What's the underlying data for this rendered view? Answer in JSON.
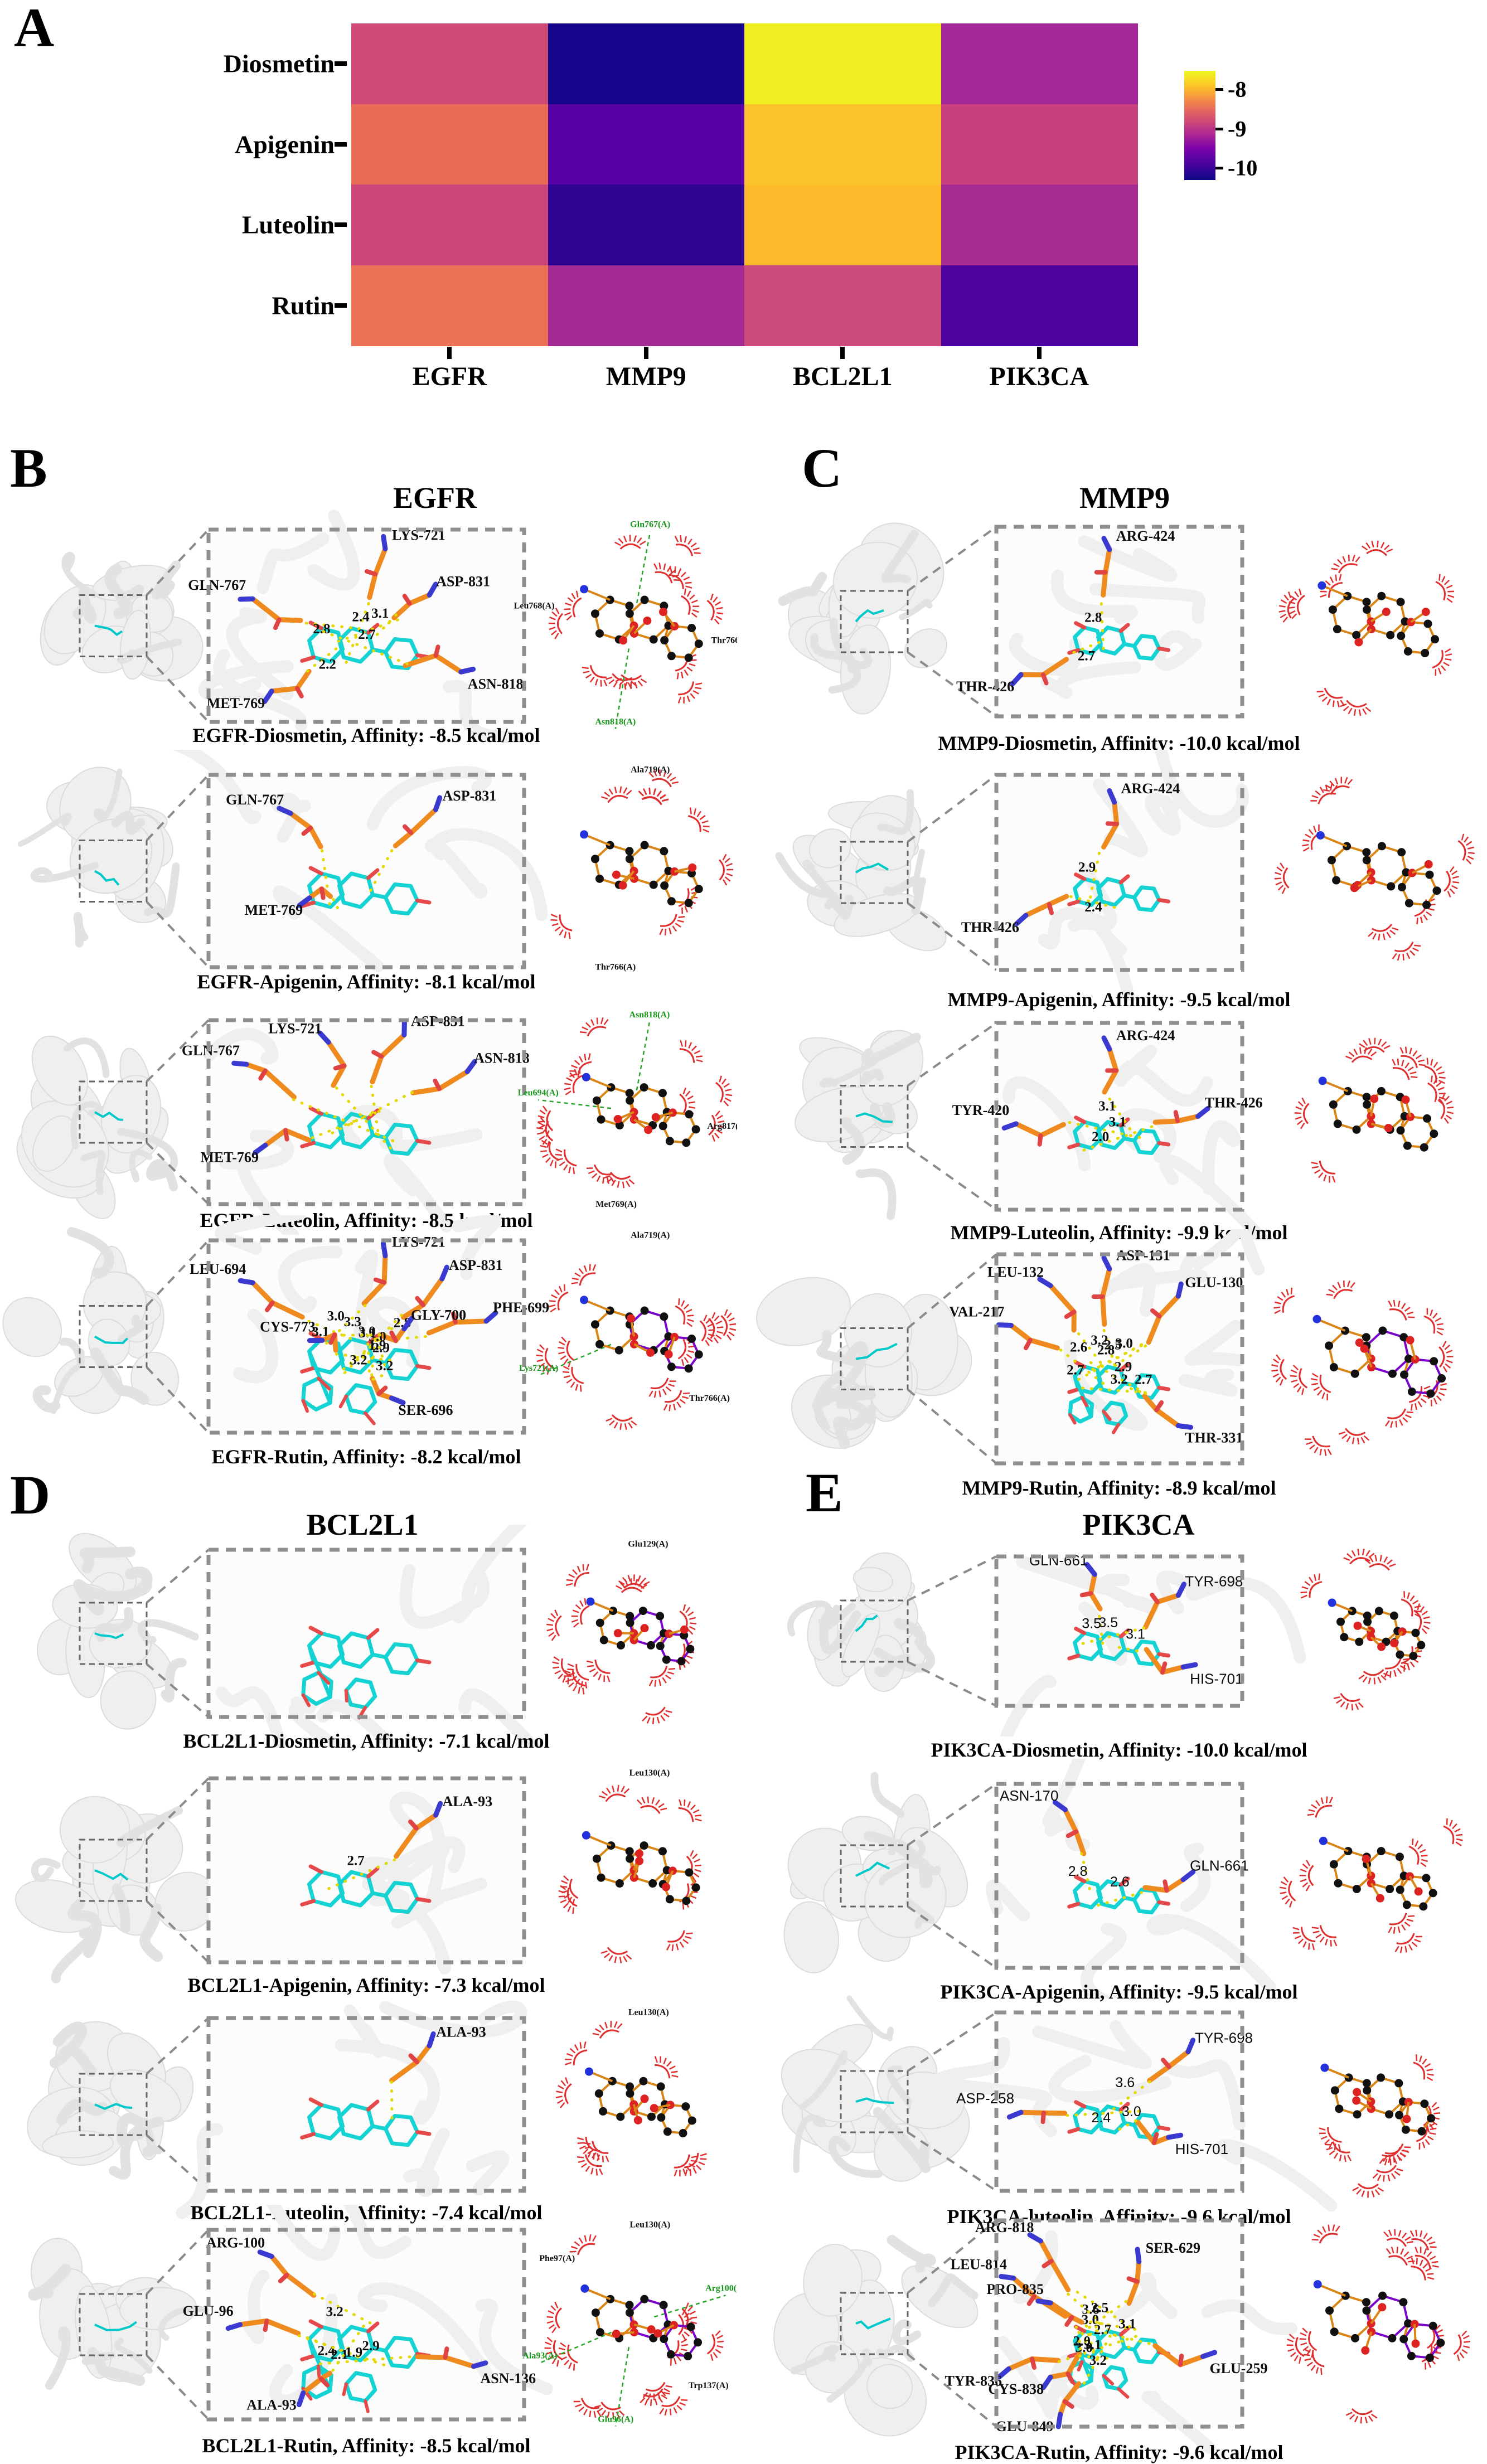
{
  "panel_a": {
    "letter": "A"
  },
  "heatmap": {
    "row_labels": [
      "Diosmetin",
      "Apigenin",
      "Luteolin",
      "Rutin"
    ],
    "col_labels": [
      "EGFR",
      "MMP9",
      "BCL2L1",
      "PIK3CA"
    ],
    "cell_colors": [
      [
        "#d04a76",
        "#16078c",
        "#f0ee23",
        "#a32897"
      ],
      [
        "#eb6c55",
        "#5901a5",
        "#fcc22c",
        "#c8407d"
      ],
      [
        "#cc4879",
        "#300591",
        "#fcba2b",
        "#a62c92"
      ],
      [
        "#eb7257",
        "#a32b93",
        "#cc4b7a",
        "#4d02a0"
      ]
    ],
    "colorbar_ticks": [
      "-8",
      "-9",
      "-10"
    ],
    "colorbar_gradient": [
      "#f0f921",
      "#fdc328",
      "#f3824d",
      "#d5546e",
      "#b12a90",
      "#7902a8",
      "#47039f",
      "#0d0887"
    ]
  },
  "chart_data": {
    "type": "heatmap",
    "title": "",
    "rows": [
      "Diosmetin",
      "Apigenin",
      "Luteolin",
      "Rutin"
    ],
    "columns": [
      "EGFR",
      "MMP9",
      "BCL2L1",
      "PIK3CA"
    ],
    "unit": "kcal/mol",
    "values": [
      [
        -8.5,
        -10.0,
        -7.1,
        -10.0
      ],
      [
        -8.1,
        -9.5,
        -7.3,
        -9.5
      ],
      [
        -8.5,
        -9.9,
        -7.4,
        -9.6
      ],
      [
        -8.2,
        -8.9,
        -8.5,
        -9.6
      ]
    ],
    "colorbar": {
      "ticks": [
        -8,
        -9,
        -10
      ],
      "colormap": "plasma",
      "orientation": "vertical"
    },
    "legend_position": "right",
    "grid": false
  },
  "panels": [
    {
      "letter": "B",
      "title": "EGFR",
      "rows": [
        {
          "caption": "EGFR-Diosmetin, Affinity: -8.5 kcal/mol",
          "affinity": "-8.5",
          "residues": [
            {
              "name": "LYS-721",
              "p": [
                0.56,
                0.1
              ],
              "d": []
            },
            {
              "name": "GLN-767",
              "p": [
                0.14,
                0.36
              ],
              "d": [
                "2.8"
              ]
            },
            {
              "name": "ASP-831",
              "p": [
                0.7,
                0.34
              ],
              "d": [
                "3.1",
                "2.4"
              ]
            },
            {
              "name": "MET-769",
              "p": [
                0.2,
                0.84
              ],
              "d": [
                "2.2"
              ]
            },
            {
              "name": "ASN-818",
              "p": [
                0.8,
                0.74
              ],
              "d": [
                "2.7"
              ]
            }
          ],
          "diagram_labels": [
            {
              "t": "Gln767(A)",
              "c": "#18961b"
            },
            {
              "t": "Thr766(A)",
              "c": "#111111"
            },
            {
              "t": "Asn818(A)",
              "c": "#18961b"
            },
            {
              "t": "Leu768(A)",
              "c": "#111111"
            }
          ],
          "purple": false,
          "sans": false
        },
        {
          "caption": "EGFR-Apigenin, Affinity: -8.1 kcal/mol",
          "affinity": "-8.1",
          "residues": [
            {
              "name": "GLN-767",
              "p": [
                0.26,
                0.2
              ],
              "d": []
            },
            {
              "name": "ASP-831",
              "p": [
                0.72,
                0.18
              ],
              "d": []
            },
            {
              "name": "MET-769",
              "p": [
                0.32,
                0.64
              ],
              "d": []
            }
          ],
          "diagram_labels": [
            {
              "t": "Ala719(A)",
              "c": "#111111"
            },
            {
              "t": "Thr766(A)",
              "c": "#111111"
            }
          ],
          "purple": false,
          "sans": false
        },
        {
          "caption": "EGFR-Luteolin, Affinity: -8.5 kcal/mol",
          "affinity": "-8.5",
          "residues": [
            {
              "name": "GLN-767",
              "p": [
                0.12,
                0.24
              ],
              "d": []
            },
            {
              "name": "LYS-721",
              "p": [
                0.38,
                0.12
              ],
              "d": []
            },
            {
              "name": "ASP-831",
              "p": [
                0.62,
                0.08
              ],
              "d": []
            },
            {
              "name": "ASN-818",
              "p": [
                0.82,
                0.28
              ],
              "d": []
            },
            {
              "name": "MET-769",
              "p": [
                0.18,
                0.68
              ],
              "d": []
            }
          ],
          "diagram_labels": [
            {
              "t": "Asn818(A)",
              "c": "#18961b"
            },
            {
              "t": "Arg817(A)",
              "c": "#111111"
            },
            {
              "t": "Met769(A)",
              "c": "#111111"
            },
            {
              "t": "Leu694(A)",
              "c": "#18961b"
            }
          ],
          "purple": false,
          "sans": false
        },
        {
          "caption": "EGFR-Rutin, Affinity: -8.2 kcal/mol",
          "affinity": "-8.2",
          "residues": [
            {
              "name": "LEU-694",
              "p": [
                0.14,
                0.22
              ],
              "d": [
                "3.1"
              ]
            },
            {
              "name": "LYS-721",
              "p": [
                0.56,
                0.08
              ],
              "d": [
                "3.0"
              ]
            },
            {
              "name": "ASP-831",
              "p": [
                0.74,
                0.2
              ],
              "d": [
                "3.0",
                "3.1"
              ]
            },
            {
              "name": "PHE-699",
              "p": [
                0.88,
                0.42
              ],
              "d": [
                "2.8"
              ]
            },
            {
              "name": "GLY-700",
              "p": [
                0.62,
                0.46
              ],
              "d": [
                "3.0",
                "3.3"
              ]
            },
            {
              "name": "CYS-773",
              "p": [
                0.36,
                0.52
              ],
              "d": [
                "3.2"
              ]
            },
            {
              "name": "SER-696",
              "p": [
                0.58,
                0.82
              ],
              "d": [
                "3.2",
                "2.9",
                "1.9"
              ]
            }
          ],
          "diagram_labels": [
            {
              "t": "Ala719(A)",
              "c": "#111111"
            },
            {
              "t": "Thr766(A)",
              "c": "#111111"
            },
            {
              "t": "Lys721(A)",
              "c": "#18961b"
            }
          ],
          "purple": true,
          "sans": false
        }
      ]
    },
    {
      "letter": "C",
      "title": "MMP9",
      "rows": [
        {
          "caption": "MMP9-Diosmetin, Affinity: -10.0 kcal/mol",
          "affinity": "-10.0",
          "residues": [
            {
              "name": "ARG-424",
              "p": [
                0.46,
                0.12
              ],
              "d": [
                "2.8"
              ]
            },
            {
              "name": "THR-426",
              "p": [
                0.1,
                0.78
              ],
              "d": [
                "2.7"
              ]
            }
          ],
          "diagram_labels": [],
          "purple": false,
          "sans": false
        },
        {
          "caption": "MMP9-Apigenin, Affinity: -9.5 kcal/mol",
          "affinity": "-9.5",
          "residues": [
            {
              "name": "ARG-424",
              "p": [
                0.48,
                0.14
              ],
              "d": [
                "2.9"
              ]
            },
            {
              "name": "THR-426",
              "p": [
                0.12,
                0.72
              ],
              "d": [
                "2.4"
              ]
            }
          ],
          "diagram_labels": [],
          "purple": false,
          "sans": false
        },
        {
          "caption": "MMP9-Luteolin, Affinity: -9.9 kcal/mol",
          "affinity": "-9.9",
          "residues": [
            {
              "name": "TYR-420",
              "p": [
                0.08,
                0.54
              ],
              "d": [
                "2.0"
              ]
            },
            {
              "name": "ARG-424",
              "p": [
                0.46,
                0.14
              ],
              "d": [
                "3.1"
              ]
            },
            {
              "name": "THR-426",
              "p": [
                0.82,
                0.5
              ],
              "d": [
                "3.1"
              ]
            }
          ],
          "diagram_labels": [],
          "purple": false,
          "sans": false
        },
        {
          "caption": "MMP9-Rutin, Affinity: -8.9 kcal/mol",
          "affinity": "-8.9",
          "residues": [
            {
              "name": "ASP-131",
              "p": [
                0.46,
                0.07
              ],
              "d": [
                "3.2"
              ]
            },
            {
              "name": "LEU-132",
              "p": [
                0.22,
                0.15
              ],
              "d": [
                "2.6"
              ]
            },
            {
              "name": "GLU-130",
              "p": [
                0.74,
                0.2
              ],
              "d": [
                "3.0",
                "2.8",
                "2.5"
              ]
            },
            {
              "name": "VAL-217",
              "p": [
                0.06,
                0.34
              ],
              "d": [
                "2.7"
              ]
            },
            {
              "name": "THR-331",
              "p": [
                0.74,
                0.82
              ],
              "d": [
                "2.7",
                "2.9",
                "3.2"
              ]
            }
          ],
          "diagram_labels": [],
          "purple": true,
          "sans": false
        }
      ]
    },
    {
      "letter": "D",
      "title": "BCL2L1",
      "rows": [
        {
          "caption": "BCL2L1-Diosmetin, Affinity: -7.1 kcal/mol",
          "affinity": "-7.1",
          "residues": [],
          "diagram_labels": [
            {
              "t": "Glu129(A)",
              "c": "#111111"
            }
          ],
          "purple": true,
          "sans": false
        },
        {
          "caption": "BCL2L1-Apigenin, Affinity: -7.3 kcal/mol",
          "affinity": "-7.3",
          "residues": [
            {
              "name": "ALA-93",
              "p": [
                0.72,
                0.2
              ],
              "d": [
                "2.7"
              ]
            }
          ],
          "diagram_labels": [
            {
              "t": "Leu130(A)",
              "c": "#111111"
            }
          ],
          "purple": false,
          "sans": false
        },
        {
          "caption": "BCL2L1-Luteolin, Affinity: -7.4 kcal/mol",
          "affinity": "-7.4",
          "residues": [
            {
              "name": "ALA-93",
              "p": [
                0.7,
                0.16
              ],
              "d": []
            }
          ],
          "diagram_labels": [
            {
              "t": "Leu130(A)",
              "c": "#111111"
            }
          ],
          "purple": false,
          "sans": false
        },
        {
          "caption": "BCL2L1-Rutin, Affinity: -8.5 kcal/mol",
          "affinity": "-8.5",
          "residues": [
            {
              "name": "ARG-100",
              "p": [
                0.2,
                0.14
              ],
              "d": [
                "3.2"
              ]
            },
            {
              "name": "GLU-96",
              "p": [
                0.1,
                0.5
              ],
              "d": [
                "2.4",
                "2.1"
              ]
            },
            {
              "name": "ALA-93",
              "p": [
                0.3,
                0.86
              ],
              "d": [
                "1.9"
              ]
            },
            {
              "name": "ASN-136",
              "p": [
                0.84,
                0.72
              ],
              "d": [
                "2.9"
              ]
            }
          ],
          "diagram_labels": [
            {
              "t": "Leu130(A)",
              "c": "#111111"
            },
            {
              "t": "Arg100(A)",
              "c": "#18961b"
            },
            {
              "t": "Trp137(A)",
              "c": "#111111"
            },
            {
              "t": "Glu96(A)",
              "c": "#18961b"
            },
            {
              "t": "Ala93(A)",
              "c": "#18961b"
            },
            {
              "t": "Phe97(A)",
              "c": "#111111"
            }
          ],
          "purple": true,
          "sans": false
        }
      ]
    },
    {
      "letter": "E",
      "title": "PIK3CA",
      "rows": [
        {
          "caption": "PIK3CA-Diosmetin, Affinity: -10.0 kcal/mol",
          "affinity": "-10.0",
          "residues": [
            {
              "name": "GLN-661",
              "p": [
                0.4,
                0.12
              ],
              "d": [
                "3.5"
              ]
            },
            {
              "name": "TYR-698",
              "p": [
                0.74,
                0.26
              ],
              "d": [
                "3.5"
              ]
            },
            {
              "name": "HIS-701",
              "p": [
                0.76,
                0.74
              ],
              "d": [
                "3.1"
              ]
            }
          ],
          "diagram_labels": [],
          "purple": false,
          "sans": true
        },
        {
          "caption": "PIK3CA-Apigenin, Affinity: -9.5 kcal/mol",
          "affinity": "-9.5",
          "residues": [
            {
              "name": "ASN-170",
              "p": [
                0.28,
                0.14
              ],
              "d": [
                "2.8"
              ]
            },
            {
              "name": "GLN-661",
              "p": [
                0.76,
                0.52
              ],
              "d": [
                "2.6"
              ]
            }
          ],
          "diagram_labels": [],
          "purple": false,
          "sans": true
        },
        {
          "caption": "PIK3CA-luteolin, Affinity: -9.6 kcal/mol",
          "affinity": "-9.6",
          "residues": [
            {
              "name": "ASP-258",
              "p": [
                0.1,
                0.56
              ],
              "d": [
                "2.4"
              ]
            },
            {
              "name": "TYR-698",
              "p": [
                0.78,
                0.22
              ],
              "d": [
                "3.6"
              ]
            },
            {
              "name": "HIS-701",
              "p": [
                0.7,
                0.7
              ],
              "d": [
                "3.0"
              ]
            }
          ],
          "diagram_labels": [],
          "purple": false,
          "sans": true
        },
        {
          "caption": "PIK3CA-Rutin, Affinity: -9.6 kcal/mol",
          "affinity": "-9.6",
          "residues": [
            {
              "name": "ARG-818",
              "p": [
                0.18,
                0.1
              ],
              "d": [
                "3.6",
                "3.0"
              ]
            },
            {
              "name": "LEU-814",
              "p": [
                0.07,
                0.28
              ],
              "d": []
            },
            {
              "name": "PRO-835",
              "p": [
                0.22,
                0.4
              ],
              "d": [
                "2.0",
                "2.7"
              ]
            },
            {
              "name": "TYR-836",
              "p": [
                0.05,
                0.72
              ],
              "d": []
            },
            {
              "name": "CYS-838",
              "p": [
                0.22,
                0.76
              ],
              "d": [
                "3.0",
                "3.2",
                "3.1"
              ]
            },
            {
              "name": "GLU-849",
              "p": [
                0.26,
                0.94
              ],
              "d": []
            },
            {
              "name": "SER-629",
              "p": [
                0.58,
                0.2
              ],
              "d": [
                "2.5"
              ]
            },
            {
              "name": "GLU-259",
              "p": [
                0.84,
                0.66
              ],
              "d": [
                "3.1"
              ]
            }
          ],
          "diagram_labels": [],
          "purple": true,
          "sans": false
        }
      ]
    }
  ]
}
